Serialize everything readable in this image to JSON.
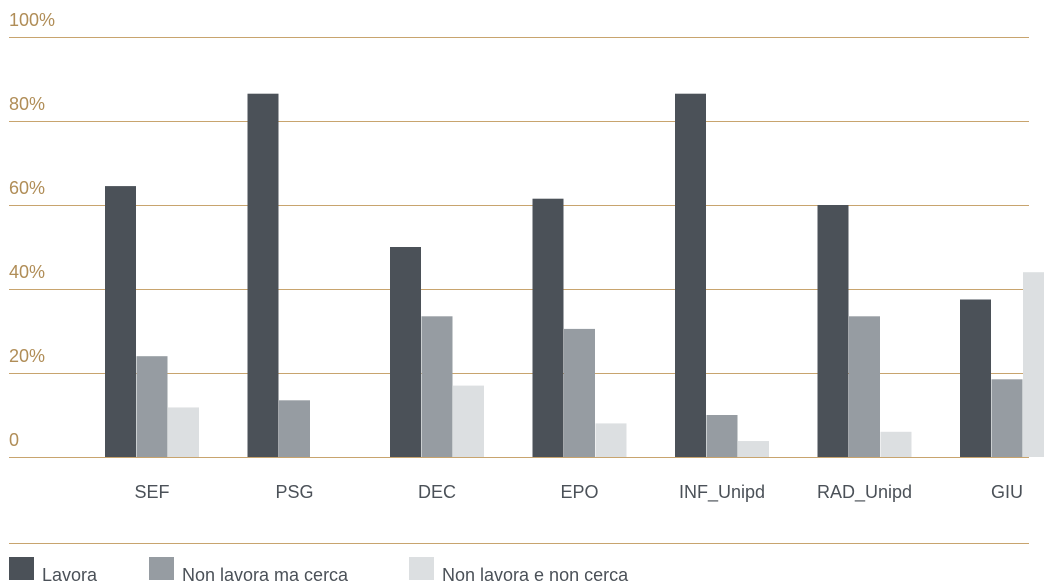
{
  "chart_data": {
    "type": "bar",
    "categories": [
      "SEF",
      "PSG",
      "DEC",
      "EPO",
      "INF_Unipd",
      "RAD_Unipd",
      "GIU"
    ],
    "y_ticks": [
      "0",
      "20%",
      "40%",
      "60%",
      "80%",
      "100%"
    ],
    "ylim": [
      0,
      100
    ],
    "grid": true,
    "legend_position": "bottom-left",
    "series": [
      {
        "name": "Lavora",
        "color": "#4b5158",
        "values": [
          64.5,
          86.5,
          50.0,
          61.5,
          86.5,
          60.0,
          37.5
        ]
      },
      {
        "name": "Non lavora ma cerca",
        "color": "#969ca2",
        "values": [
          24.0,
          13.5,
          33.5,
          30.5,
          10.0,
          33.5,
          18.5
        ]
      },
      {
        "name": "Non lavora e non cerca",
        "color": "#dcdfe1",
        "values": [
          11.8,
          0,
          17.0,
          8.0,
          3.8,
          6.0,
          44.0
        ]
      }
    ],
    "colors": {
      "grid": "#c8a46e",
      "tick_label": "#b08d57",
      "category_label": "#4b5158"
    }
  }
}
